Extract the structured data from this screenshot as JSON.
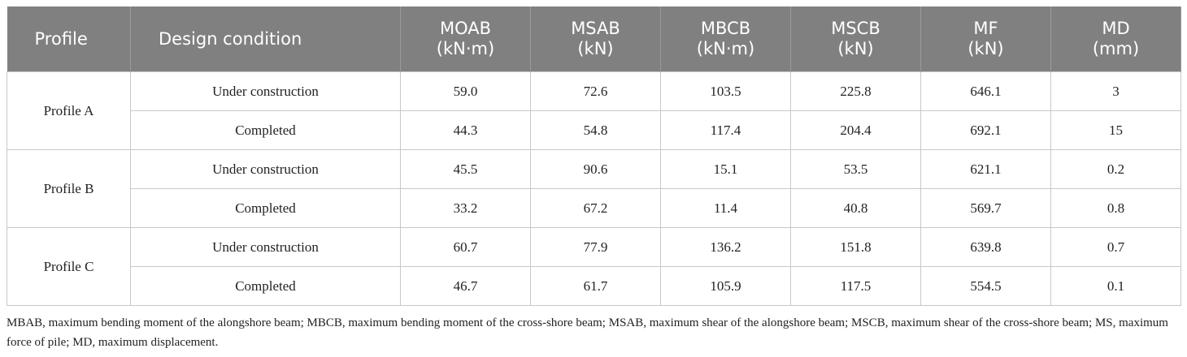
{
  "table": {
    "columns": [
      [
        "Profile"
      ],
      [
        "Design condition"
      ],
      [
        "MOAB",
        "(kN·m)"
      ],
      [
        "MSAB",
        "(kN)"
      ],
      [
        "MBCB",
        "(kN·m)"
      ],
      [
        "MSCB",
        "(kN)"
      ],
      [
        "MF",
        "(kN)"
      ],
      [
        "MD",
        "(mm)"
      ]
    ],
    "groups": [
      {
        "profile": "Profile A",
        "rows": [
          [
            "Under construction",
            "59.0",
            "72.6",
            "103.5",
            "225.8",
            "646.1",
            "3"
          ],
          [
            "Completed",
            "44.3",
            "54.8",
            "117.4",
            "204.4",
            "692.1",
            "15"
          ]
        ]
      },
      {
        "profile": "Profile B",
        "rows": [
          [
            "Under construction",
            "45.5",
            "90.6",
            "15.1",
            "53.5",
            "621.1",
            "0.2"
          ],
          [
            "Completed",
            "33.2",
            "67.2",
            "11.4",
            "40.8",
            "569.7",
            "0.8"
          ]
        ]
      },
      {
        "profile": "Profile C",
        "rows": [
          [
            "Under construction",
            "60.7",
            "77.9",
            "136.2",
            "151.8",
            "639.8",
            "0.7"
          ],
          [
            "Completed",
            "46.7",
            "61.7",
            "105.9",
            "117.5",
            "554.5",
            "0.1"
          ]
        ]
      }
    ]
  },
  "footnote": "MBAB, maximum bending moment of the alongshore beam; MBCB, maximum bending moment of the cross-shore beam; MSAB, maximum shear of the alongshore beam; MSCB, maximum shear of the cross-shore beam; MS, maximum force of pile; MD, maximum displacement."
}
